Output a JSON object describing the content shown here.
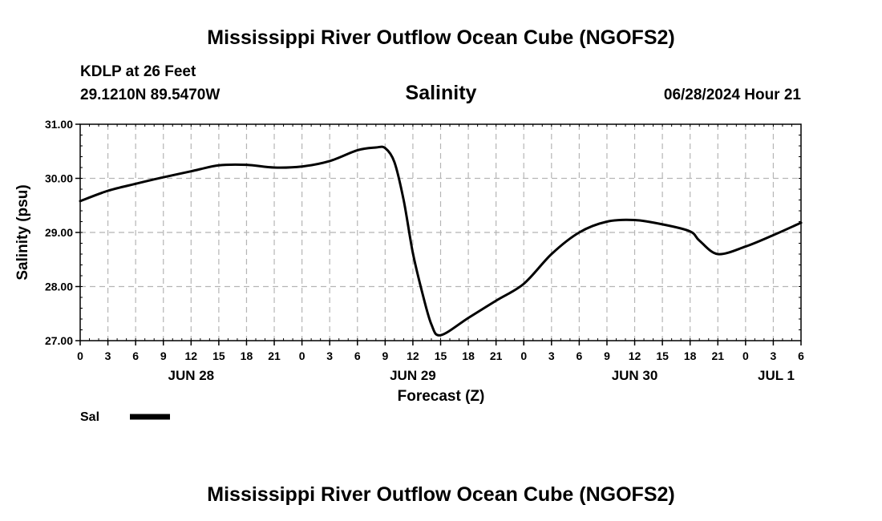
{
  "header": {
    "title": "Mississippi River Outflow Ocean Cube (NGOFS2)",
    "station": "KDLP at 26 Feet",
    "coords": "29.1210N  89.5470W",
    "variable": "Salinity",
    "datetime": "06/28/2024 Hour 21"
  },
  "footer": {
    "title": "Mississippi River Outflow Ocean Cube (NGOFS2)"
  },
  "chart_data": {
    "type": "line",
    "title": "Salinity",
    "xlabel": "Forecast (Z)",
    "ylabel": "Salinity (psu)",
    "xlim": [
      0,
      78
    ],
    "ylim": [
      27.0,
      31.0
    ],
    "y_ticks": [
      "27.00",
      "28.00",
      "29.00",
      "30.00",
      "31.00"
    ],
    "x_tick_labels": [
      "0",
      "3",
      "6",
      "9",
      "12",
      "15",
      "18",
      "21",
      "0",
      "3",
      "6",
      "9",
      "12",
      "15",
      "18",
      "21",
      "0",
      "3",
      "6",
      "9",
      "12",
      "15",
      "18",
      "21",
      "0",
      "3",
      "6"
    ],
    "day_labels": [
      {
        "label": "JUN 28",
        "hour": 12
      },
      {
        "label": "JUN 29",
        "hour": 36
      },
      {
        "label": "JUN 30",
        "hour": 60
      },
      {
        "label": "JUL 1",
        "hour": 78
      }
    ],
    "grid": true,
    "series": [
      {
        "name": "Sal",
        "color": "#000000",
        "x": [
          0,
          3,
          6,
          9,
          12,
          15,
          18,
          21,
          24,
          27,
          30,
          32,
          33,
          34,
          35,
          36,
          37,
          38,
          39,
          42,
          45,
          48,
          51,
          54,
          57,
          60,
          63,
          66,
          67,
          69,
          72,
          75,
          78
        ],
        "y": [
          29.58,
          29.77,
          29.9,
          30.02,
          30.13,
          30.24,
          30.25,
          30.2,
          30.22,
          30.32,
          30.52,
          30.57,
          30.56,
          30.3,
          29.6,
          28.62,
          27.9,
          27.3,
          27.1,
          27.42,
          27.74,
          28.05,
          28.6,
          29.0,
          29.2,
          29.23,
          29.15,
          29.02,
          28.85,
          28.6,
          28.74,
          28.95,
          29.18
        ]
      }
    ],
    "legend": {
      "placement": "bottom-left",
      "label": "Sal"
    }
  }
}
